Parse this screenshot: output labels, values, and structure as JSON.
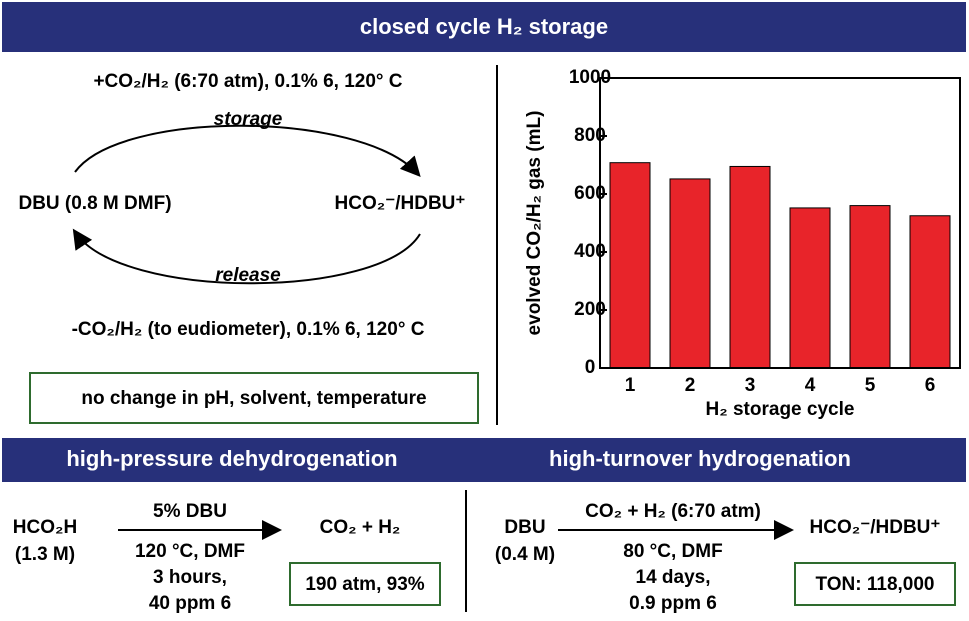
{
  "header": {
    "title": "closed cycle H₂ storage"
  },
  "cycle": {
    "storage_conditions": "+CO₂/H₂ (6:70 atm), 0.1% 6, 120° C",
    "storage_label": "storage",
    "left_species": "DBU (0.8 M DMF)",
    "right_species": "HCO₂⁻/HDBU⁺",
    "release_label": "release",
    "release_conditions": "-CO₂/H₂ (to eudiometer), 0.1% 6, 120° C",
    "note": "no change in pH, solvent, temperature"
  },
  "chart_data": {
    "type": "bar",
    "categories": [
      "1",
      "2",
      "3",
      "4",
      "5",
      "6"
    ],
    "values": [
      708,
      652,
      695,
      552,
      560,
      525
    ],
    "color": "#e8242a",
    "ylim": [
      0,
      1000
    ],
    "yticks": [
      0,
      200,
      400,
      600,
      800,
      1000
    ],
    "ylabel": "evolved CO₂/H₂ gas (mL)",
    "xlabel": "H₂ storage cycle"
  },
  "dehydrogenation": {
    "title": "high-pressure dehydrogenation",
    "reactant": "HCO₂H",
    "concentration": "(1.3 M)",
    "above_arrow": "5% DBU",
    "below_arrow": [
      "120 °C, DMF",
      "3 hours,",
      "40 ppm 6"
    ],
    "product": "CO₂ + H₂",
    "result": "190 atm, 93%"
  },
  "hydrogenation": {
    "title": "high-turnover hydrogenation",
    "reactant": "DBU",
    "concentration": "(0.4 M)",
    "above_arrow": "CO₂ + H₂ (6:70 atm)",
    "below_arrow": [
      "80 °C, DMF",
      "14 days,",
      "0.9 ppm 6"
    ],
    "product": "HCO₂⁻/HDBU⁺",
    "result": "TON: 118,000"
  }
}
